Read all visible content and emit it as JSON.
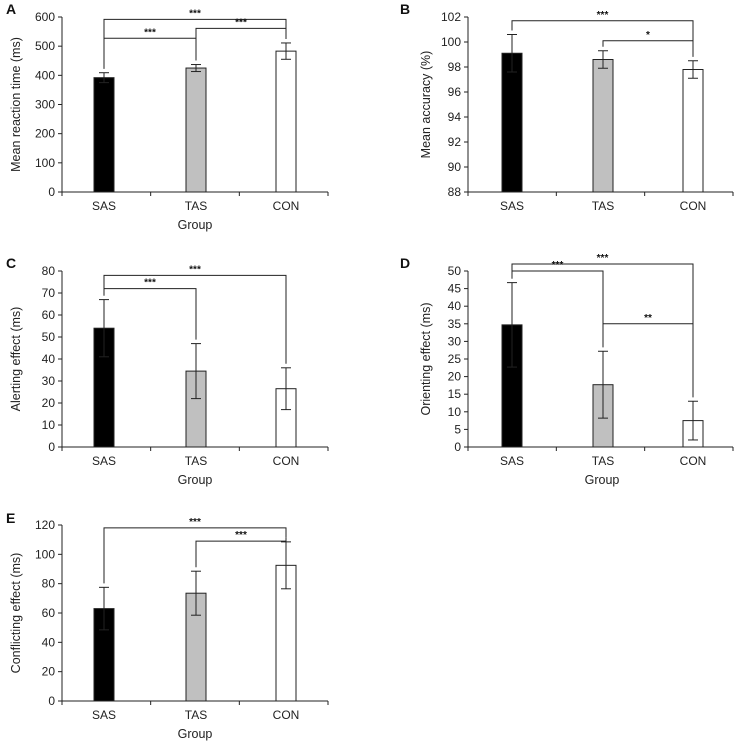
{
  "figure": {
    "group_colors": {
      "SAS": "#000000",
      "TAS": "#c0c0c0",
      "CON": "#ffffff"
    }
  },
  "chart_data": [
    {
      "panel": "A",
      "type": "bar",
      "categories": [
        "SAS",
        "TAS",
        "CON"
      ],
      "values": [
        392,
        425,
        483
      ],
      "errors": [
        17,
        12,
        28
      ],
      "xlabel": "Group",
      "ylabel": "Mean reaction time (ms)",
      "ylim": [
        0,
        600
      ],
      "yticks": [
        0,
        100,
        200,
        300,
        400,
        500,
        600
      ],
      "significance": [
        {
          "from": 0,
          "to": 2,
          "label": "***",
          "y": 592
        },
        {
          "from": 0,
          "to": 1,
          "label": "***",
          "y": 527
        },
        {
          "from": 1,
          "to": 2,
          "label": "***",
          "y": 561
        }
      ]
    },
    {
      "panel": "B",
      "type": "bar",
      "categories": [
        "SAS",
        "TAS",
        "CON"
      ],
      "values": [
        99.1,
        98.6,
        97.8
      ],
      "errors": [
        1.5,
        0.7,
        0.7
      ],
      "xlabel": "",
      "ylabel": "Mean accuracy (%)",
      "ylim": [
        88,
        102
      ],
      "yticks": [
        88,
        90,
        92,
        94,
        96,
        98,
        100,
        102
      ],
      "significance": [
        {
          "from": 0,
          "to": 2,
          "label": "***",
          "y": 101.7
        },
        {
          "from": 1,
          "to": 2,
          "label": "*",
          "y": 100.1
        }
      ]
    },
    {
      "panel": "C",
      "type": "bar",
      "categories": [
        "SAS",
        "TAS",
        "CON"
      ],
      "values": [
        54,
        34.5,
        26.5
      ],
      "errors": [
        13,
        12.5,
        9.5
      ],
      "xlabel": "Group",
      "ylabel": "Alerting effect (ms)",
      "ylim": [
        0,
        80
      ],
      "yticks": [
        0,
        10,
        20,
        30,
        40,
        50,
        60,
        70,
        80
      ],
      "significance": [
        {
          "from": 0,
          "to": 2,
          "label": "***",
          "y": 78
        },
        {
          "from": 0,
          "to": 1,
          "label": "***",
          "y": 72
        }
      ]
    },
    {
      "panel": "D",
      "type": "bar",
      "categories": [
        "SAS",
        "TAS",
        "CON"
      ],
      "values": [
        34.7,
        17.7,
        7.5
      ],
      "errors": [
        12,
        9.5,
        5.5
      ],
      "xlabel": "Group",
      "ylabel": "Orienting effect (ms)",
      "ylim": [
        0,
        50
      ],
      "yticks": [
        0,
        5,
        10,
        15,
        20,
        25,
        30,
        35,
        40,
        45,
        50
      ],
      "significance": [
        {
          "from": 0,
          "to": 2,
          "label": "***",
          "y": 52
        },
        {
          "from": 0,
          "to": 1,
          "label": "***",
          "y": 50
        },
        {
          "from": 1,
          "to": 2,
          "label": "**",
          "y": 35
        }
      ]
    },
    {
      "panel": "E",
      "type": "bar",
      "categories": [
        "SAS",
        "TAS",
        "CON"
      ],
      "values": [
        63,
        73.5,
        92.5
      ],
      "errors": [
        14.5,
        15,
        16
      ],
      "xlabel": "Group",
      "ylabel": "Conflicting effect (ms)",
      "ylim": [
        0,
        120
      ],
      "yticks": [
        0,
        20,
        40,
        60,
        80,
        100,
        120
      ],
      "significance": [
        {
          "from": 0,
          "to": 2,
          "label": "***",
          "y": 118
        },
        {
          "from": 1,
          "to": 2,
          "label": "***",
          "y": 109
        }
      ]
    }
  ]
}
